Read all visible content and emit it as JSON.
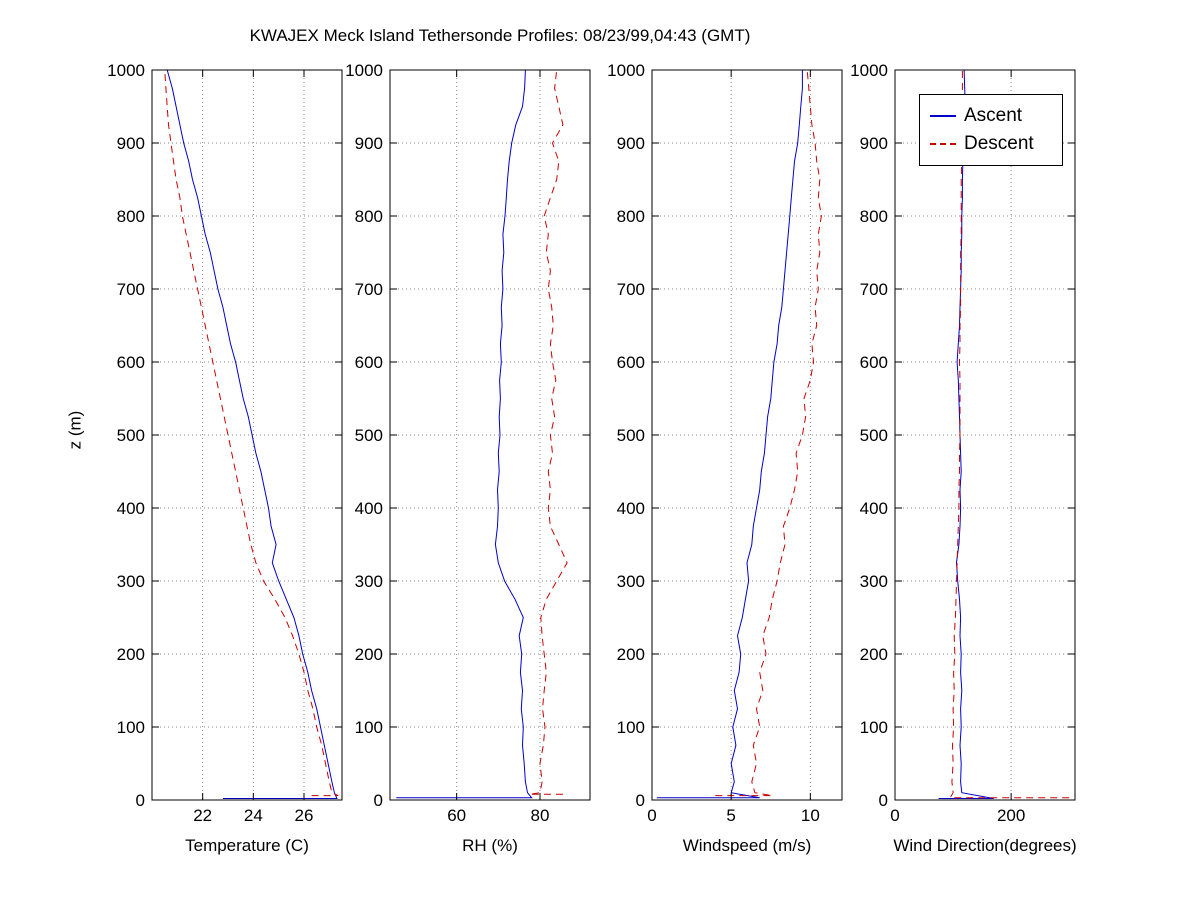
{
  "chart_data": {
    "type": "line",
    "title": "KWAJEX Meck Island Tethersonde Profiles: 08/23/99,04:43 (GMT)",
    "ylabel": "z (m)",
    "ylim": [
      0,
      1000
    ],
    "yticks": [
      0,
      100,
      200,
      300,
      400,
      500,
      600,
      700,
      800,
      900,
      1000
    ],
    "grid": true,
    "legend": {
      "position": "top-right",
      "entries": [
        "Ascent",
        "Descent"
      ]
    },
    "series_style": {
      "ascent": {
        "label": "Ascent",
        "color": "#0000cc",
        "line": "solid"
      },
      "descent": {
        "label": "Descent",
        "color": "#cc0000",
        "line": "dashed"
      }
    },
    "z_levels": [
      10,
      25,
      50,
      75,
      100,
      125,
      150,
      175,
      200,
      225,
      250,
      275,
      300,
      325,
      350,
      375,
      400,
      425,
      450,
      475,
      500,
      525,
      550,
      575,
      600,
      625,
      650,
      675,
      700,
      725,
      750,
      775,
      800,
      825,
      850,
      875,
      900,
      925,
      950,
      975,
      1000
    ],
    "panels": [
      {
        "name": "temperature",
        "xlabel": "Temperature (C)",
        "xlim": [
          20,
          27.5
        ],
        "xticks": [
          22,
          24,
          26
        ],
        "ascent": {
          "surface_x": [
            22.8,
            27.3
          ],
          "surface_z": [
            2,
            2
          ],
          "x": [
            27.2,
            27.1,
            26.95,
            26.8,
            26.65,
            26.5,
            26.3,
            26.15,
            25.95,
            25.8,
            25.6,
            25.3,
            25.0,
            24.75,
            24.9,
            24.7,
            24.6,
            24.45,
            24.3,
            24.1,
            23.95,
            23.8,
            23.6,
            23.45,
            23.3,
            23.1,
            22.95,
            22.8,
            22.6,
            22.45,
            22.3,
            22.1,
            21.95,
            21.8,
            21.6,
            21.45,
            21.25,
            21.1,
            20.95,
            20.8,
            20.6
          ]
        },
        "descent": {
          "surface_x": [
            26.3,
            27.35
          ],
          "surface_z": [
            6,
            6
          ],
          "x": [
            27.1,
            27.0,
            26.85,
            26.7,
            26.5,
            26.35,
            26.15,
            26.0,
            25.8,
            25.55,
            25.25,
            24.85,
            24.4,
            24.1,
            23.9,
            23.75,
            23.6,
            23.45,
            23.3,
            23.15,
            23.0,
            22.85,
            22.7,
            22.55,
            22.4,
            22.25,
            22.1,
            21.95,
            21.8,
            21.65,
            21.5,
            21.35,
            21.2,
            21.1,
            20.95,
            20.85,
            20.75,
            20.65,
            20.6,
            20.55,
            20.5
          ]
        }
      },
      {
        "name": "rh",
        "xlabel": "RH (%)",
        "xlim": [
          44,
          92
        ],
        "xticks": [
          60,
          80
        ],
        "ascent": {
          "surface_x": [
            45.5,
            78.0
          ],
          "surface_z": [
            3,
            3
          ],
          "x": [
            77.0,
            76.5,
            76.2,
            75.8,
            76.0,
            75.5,
            75.8,
            75.3,
            75.6,
            75.0,
            76.0,
            74.0,
            71.5,
            70.0,
            69.3,
            69.8,
            70.0,
            69.8,
            70.2,
            70.0,
            70.4,
            70.2,
            70.5,
            70.3,
            70.7,
            70.5,
            70.9,
            70.7,
            71.1,
            70.9,
            71.3,
            71.1,
            71.6,
            71.9,
            72.2,
            72.6,
            73.2,
            74.2,
            75.8,
            76.3,
            76.5
          ]
        },
        "descent": {
          "surface_x": [
            85.5,
            77.5
          ],
          "surface_z": [
            8,
            8
          ],
          "x": [
            80.0,
            80.5,
            80.0,
            80.8,
            81.2,
            80.6,
            81.0,
            81.5,
            81.0,
            80.5,
            80.2,
            81.5,
            84.0,
            86.5,
            84.5,
            82.5,
            82.0,
            82.5,
            82.0,
            83.0,
            82.5,
            83.5,
            82.8,
            83.8,
            83.0,
            82.5,
            83.2,
            82.8,
            82.0,
            82.5,
            81.5,
            82.0,
            81.0,
            82.5,
            84.0,
            84.5,
            83.0,
            85.5,
            84.5,
            83.5,
            84.0
          ]
        }
      },
      {
        "name": "windspeed",
        "xlabel": "Windspeed (m/s)",
        "xlim": [
          0,
          12
        ],
        "xticks": [
          0,
          5,
          10
        ],
        "ascent": {
          "surface_x": [
            0.3,
            6.8
          ],
          "surface_z": [
            3,
            3
          ],
          "x": [
            5.0,
            5.2,
            5.0,
            5.3,
            5.1,
            5.4,
            5.2,
            5.5,
            5.6,
            5.4,
            5.7,
            5.9,
            6.1,
            6.0,
            6.3,
            6.4,
            6.6,
            6.8,
            6.9,
            7.1,
            7.2,
            7.3,
            7.5,
            7.6,
            7.7,
            7.9,
            8.0,
            8.2,
            8.3,
            8.4,
            8.5,
            8.6,
            8.7,
            8.8,
            8.9,
            9.0,
            9.2,
            9.3,
            9.4,
            9.5,
            9.5
          ]
        },
        "descent": {
          "surface_x": [
            4.0,
            7.6
          ],
          "surface_z": [
            6,
            6
          ],
          "x": [
            6.5,
            6.3,
            6.6,
            6.4,
            6.8,
            6.6,
            7.0,
            6.8,
            7.2,
            7.0,
            7.4,
            7.6,
            7.9,
            8.1,
            8.4,
            8.3,
            8.7,
            9.0,
            9.2,
            9.1,
            9.5,
            9.7,
            9.6,
            10.0,
            10.2,
            10.1,
            10.4,
            10.3,
            10.5,
            10.4,
            10.6,
            10.5,
            10.7,
            10.5,
            10.6,
            10.4,
            10.3,
            10.1,
            10.0,
            9.9,
            9.8
          ]
        }
      },
      {
        "name": "wind-direction",
        "xlabel": "Wind Direction(degrees)",
        "xlim": [
          0,
          310
        ],
        "xticks": [
          0,
          200
        ],
        "ascent": {
          "surface_x": [
            75,
            170
          ],
          "surface_z": [
            2,
            2
          ],
          "x": [
            115,
            113,
            114,
            112,
            114,
            113,
            115,
            113,
            114,
            112,
            113,
            111,
            108,
            106,
            110,
            112,
            113,
            112,
            114,
            113,
            112,
            111,
            110,
            109,
            107,
            109,
            111,
            112,
            113,
            114,
            114,
            115,
            115,
            116,
            116,
            117,
            118,
            120,
            121,
            120,
            119
          ]
        },
        "descent": {
          "surface_x": [
            300,
            95
          ],
          "surface_z": [
            3,
            3
          ],
          "x": [
            100,
            98,
            100,
            99,
            101,
            100,
            102,
            101,
            103,
            102,
            104,
            105,
            106,
            107,
            108,
            109,
            110,
            110,
            111,
            111,
            112,
            112,
            112,
            112,
            111,
            112,
            112,
            113,
            113,
            113,
            113,
            114,
            114,
            114,
            114,
            115,
            115,
            116,
            116,
            116,
            116
          ]
        }
      }
    ]
  }
}
